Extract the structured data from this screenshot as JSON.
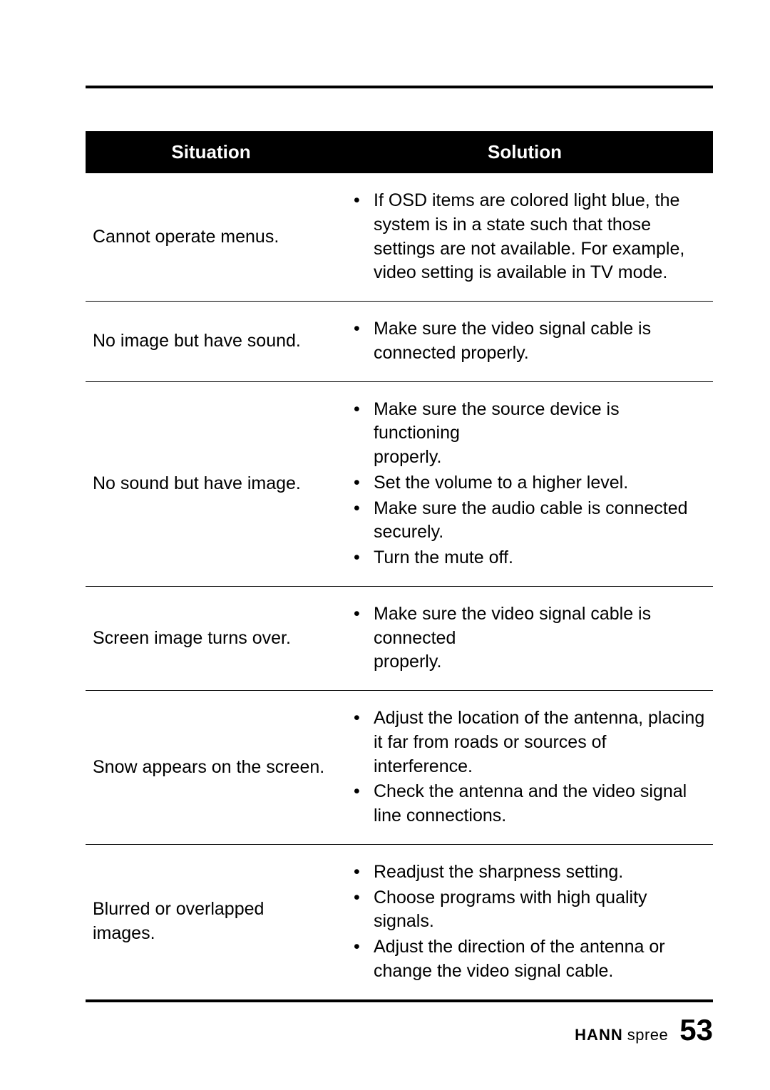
{
  "table": {
    "headers": {
      "situation": "Situation",
      "solution": "Solution"
    },
    "rows": [
      {
        "situation": "Cannot operate menus.",
        "solutions": [
          "If OSD items are colored light blue, the system is in a state such that those settings are not available. For example, video setting is available in TV mode."
        ]
      },
      {
        "situation": "No image but have sound.",
        "solutions": [
          "Make sure the video signal cable is connected properly."
        ]
      },
      {
        "situation": "No sound but have image.",
        "solutions": [
          "Make sure the source device is functioning\n properly.",
          "Set the volume to a higher level.",
          "Make sure the audio cable is connected securely.",
          "Turn the mute off."
        ]
      },
      {
        "situation": "Screen image turns over.",
        "solutions": [
          "Make sure the video signal cable is connected\nproperly."
        ]
      },
      {
        "situation": "Snow appears on the screen.",
        "solutions": [
          "Adjust the location of the antenna, placing it far from roads or sources of interference.",
          "Check the antenna and the video signal line connections."
        ]
      },
      {
        "situation": "Blurred or overlapped images.",
        "solutions": [
          "Readjust the sharpness setting.",
          "Choose programs with high quality signals.",
          "Adjust the direction of the antenna or change the video signal cable."
        ]
      }
    ]
  },
  "footer": {
    "brand_hann": "HANN",
    "brand_spree": "spree",
    "page_number": "53"
  }
}
